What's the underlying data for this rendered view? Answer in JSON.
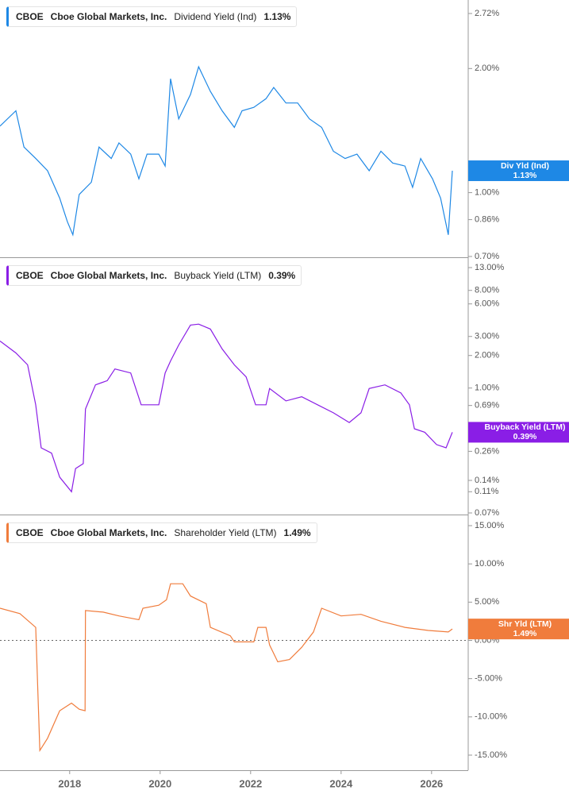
{
  "chart_data": [
    {
      "type": "line",
      "ticker": "CBOE",
      "company": "Cboe Global Markets, Inc.",
      "log": true,
      "xlim": [
        2016.46,
        2026.81
      ],
      "ylim": [
        0.7,
        2.72
      ],
      "yticks": [
        {
          "value": 0.7,
          "label": "0.70%"
        },
        {
          "value": 0.86,
          "label": "0.86%"
        },
        {
          "value": 1.0,
          "label": "1.00%"
        },
        {
          "value": 2.0,
          "label": "2.00%"
        },
        {
          "value": 2.72,
          "label": "2.72%"
        }
      ],
      "x": [
        2016.46,
        2016.81,
        2016.99,
        2017.25,
        2017.51,
        2017.78,
        2017.95,
        2018.07,
        2018.21,
        2018.48,
        2018.65,
        2018.92,
        2019.09,
        2019.35,
        2019.53,
        2019.71,
        2019.97,
        2020.11,
        2020.23,
        2020.41,
        2020.67,
        2020.85,
        2021.11,
        2021.37,
        2021.64,
        2021.81,
        2022.07,
        2022.34,
        2022.51,
        2022.78,
        2023.04,
        2023.3,
        2023.57,
        2023.83,
        2024.09,
        2024.35,
        2024.62,
        2024.88,
        2025.14,
        2025.41,
        2025.58,
        2025.76,
        2026.02,
        2026.2,
        2026.37,
        2026.46
      ],
      "series": [
        {
          "name": "Dividend Yield (Ind)",
          "short_name": "Div Yld (Ind)",
          "last_label": "1.13%",
          "color": "#1e88e5",
          "values": [
            1.45,
            1.58,
            1.29,
            1.21,
            1.13,
            0.97,
            0.85,
            0.79,
            0.99,
            1.06,
            1.29,
            1.21,
            1.32,
            1.24,
            1.08,
            1.24,
            1.24,
            1.16,
            1.89,
            1.51,
            1.73,
            2.02,
            1.76,
            1.58,
            1.44,
            1.58,
            1.61,
            1.69,
            1.8,
            1.65,
            1.65,
            1.51,
            1.44,
            1.26,
            1.21,
            1.24,
            1.13,
            1.26,
            1.18,
            1.16,
            1.03,
            1.21,
            1.08,
            0.97,
            0.79,
            1.13
          ]
        }
      ]
    },
    {
      "type": "line",
      "ticker": "CBOE",
      "company": "Cboe Global Markets, Inc.",
      "log": true,
      "xlim": [
        2016.46,
        2026.81
      ],
      "ylim": [
        0.07,
        13
      ],
      "yticks": [
        {
          "value": 0.07,
          "label": "0.07%"
        },
        {
          "value": 0.11,
          "label": "0.11%"
        },
        {
          "value": 0.14,
          "label": "0.14%"
        },
        {
          "value": 0.26,
          "label": "0.26%"
        },
        {
          "value": 0.69,
          "label": "0.69%"
        },
        {
          "value": 1.0,
          "label": "1.00%"
        },
        {
          "value": 2.0,
          "label": "2.00%"
        },
        {
          "value": 3.0,
          "label": "3.00%"
        },
        {
          "value": 6.0,
          "label": "6.00%"
        },
        {
          "value": 8.0,
          "label": "8.00%"
        },
        {
          "value": 13.0,
          "label": "13.00%"
        }
      ],
      "x": [
        2016.46,
        2016.81,
        2017.07,
        2017.25,
        2017.37,
        2017.6,
        2017.78,
        2018.04,
        2018.13,
        2018.3,
        2018.35,
        2018.57,
        2018.83,
        2019.0,
        2019.35,
        2019.58,
        2019.97,
        2020.11,
        2020.23,
        2020.41,
        2020.67,
        2020.85,
        2021.11,
        2021.37,
        2021.64,
        2021.9,
        2022.11,
        2022.34,
        2022.42,
        2022.78,
        2023.13,
        2023.48,
        2023.83,
        2024.18,
        2024.44,
        2024.62,
        2024.97,
        2025.32,
        2025.51,
        2025.62,
        2025.85,
        2026.11,
        2026.32,
        2026.46
      ],
      "series": [
        {
          "name": "Buyback Yield (LTM)",
          "short_name": "Buyback Yield (LTM)",
          "last_label": "0.39%",
          "color": "#8a1ee6",
          "values": [
            2.72,
            2.11,
            1.64,
            0.7,
            0.28,
            0.25,
            0.15,
            0.11,
            0.18,
            0.2,
            0.64,
            1.07,
            1.17,
            1.5,
            1.38,
            0.7,
            0.7,
            1.38,
            1.78,
            2.5,
            3.82,
            3.9,
            3.51,
            2.3,
            1.64,
            1.27,
            0.7,
            0.7,
            0.99,
            0.76,
            0.83,
            0.7,
            0.59,
            0.48,
            0.59,
            0.99,
            1.07,
            0.9,
            0.7,
            0.42,
            0.39,
            0.3,
            0.28,
            0.39
          ]
        }
      ]
    },
    {
      "type": "line",
      "ticker": "CBOE",
      "company": "Cboe Global Markets, Inc.",
      "log": false,
      "xlim": [
        2016.46,
        2026.81
      ],
      "ylim": [
        -15,
        15
      ],
      "reference_line": 0,
      "xticks": [
        2018,
        2020,
        2022,
        2024,
        2026
      ],
      "yticks": [
        {
          "value": -15,
          "label": "-15.00%"
        },
        {
          "value": -10,
          "label": "-10.00%"
        },
        {
          "value": -5,
          "label": "-5.00%"
        },
        {
          "value": 0,
          "label": "0.00%"
        },
        {
          "value": 5,
          "label": "5.00%"
        },
        {
          "value": 10,
          "label": "10.00%"
        },
        {
          "value": 15,
          "label": "15.00%"
        }
      ],
      "x": [
        2016.46,
        2016.9,
        2017.25,
        2017.34,
        2017.51,
        2017.78,
        2018.04,
        2018.21,
        2018.34,
        2018.35,
        2018.74,
        2019.09,
        2019.53,
        2019.62,
        2019.97,
        2020.14,
        2020.23,
        2020.5,
        2020.67,
        2021.02,
        2021.11,
        2021.55,
        2021.64,
        2022.07,
        2022.16,
        2022.34,
        2022.42,
        2022.6,
        2022.86,
        2023.13,
        2023.39,
        2023.57,
        2024.0,
        2024.44,
        2024.88,
        2025.41,
        2025.93,
        2026.37,
        2026.46
      ],
      "series": [
        {
          "name": "Shareholder Yield (LTM)",
          "short_name": "Shr Yld (LTM)",
          "last_label": "1.49%",
          "color": "#f07c3c",
          "values": [
            4.2,
            3.5,
            1.7,
            -14.4,
            -12.8,
            -9.2,
            -8.2,
            -9.0,
            -9.2,
            3.9,
            3.7,
            3.2,
            2.7,
            4.2,
            4.6,
            5.3,
            7.4,
            7.4,
            5.8,
            4.8,
            1.7,
            0.6,
            -0.2,
            -0.2,
            1.7,
            1.7,
            -0.6,
            -2.8,
            -2.5,
            -0.9,
            1.1,
            4.2,
            3.2,
            3.4,
            2.5,
            1.7,
            1.3,
            1.1,
            1.49
          ]
        }
      ]
    }
  ]
}
